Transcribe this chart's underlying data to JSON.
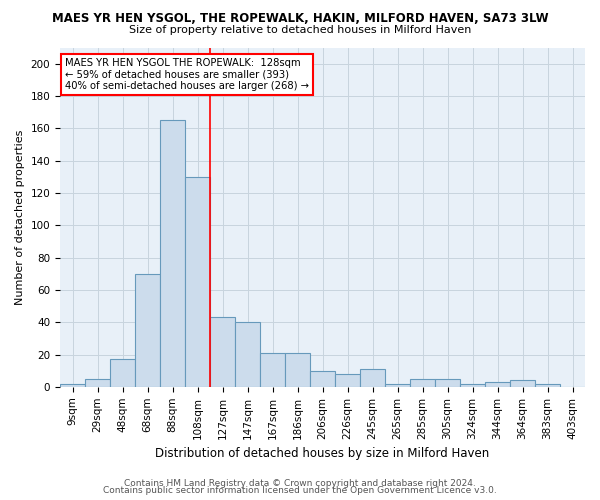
{
  "title": "MAES YR HEN YSGOL, THE ROPEWALK, HAKIN, MILFORD HAVEN, SA73 3LW",
  "subtitle": "Size of property relative to detached houses in Milford Haven",
  "xlabel": "Distribution of detached houses by size in Milford Haven",
  "ylabel": "Number of detached properties",
  "bar_color": "#ccdcec",
  "bar_edge_color": "#6699bb",
  "bar_edge_width": 0.8,
  "categories": [
    "9sqm",
    "29sqm",
    "48sqm",
    "68sqm",
    "88sqm",
    "108sqm",
    "127sqm",
    "147sqm",
    "167sqm",
    "186sqm",
    "206sqm",
    "226sqm",
    "245sqm",
    "265sqm",
    "285sqm",
    "305sqm",
    "324sqm",
    "344sqm",
    "364sqm",
    "383sqm",
    "403sqm"
  ],
  "values": [
    2,
    5,
    17,
    70,
    165,
    130,
    43,
    40,
    21,
    21,
    10,
    8,
    11,
    2,
    5,
    5,
    2,
    3,
    4,
    2,
    0
  ],
  "red_line_index": 6,
  "annotation_lines": [
    "MAES YR HEN YSGOL THE ROPEWALK:  128sqm",
    "← 59% of detached houses are smaller (393)",
    "40% of semi-detached houses are larger (268) →"
  ],
  "ylim": [
    0,
    210
  ],
  "yticks": [
    0,
    20,
    40,
    60,
    80,
    100,
    120,
    140,
    160,
    180,
    200
  ],
  "grid_color": "#c8d4de",
  "plot_bg_color": "#e8f0f8",
  "footer1": "Contains HM Land Registry data © Crown copyright and database right 2024.",
  "footer2": "Contains public sector information licensed under the Open Government Licence v3.0.",
  "title_fontsize": 8.5,
  "subtitle_fontsize": 8,
  "ylabel_fontsize": 8,
  "xlabel_fontsize": 8.5,
  "tick_fontsize": 7.5,
  "footer_fontsize": 6.5
}
